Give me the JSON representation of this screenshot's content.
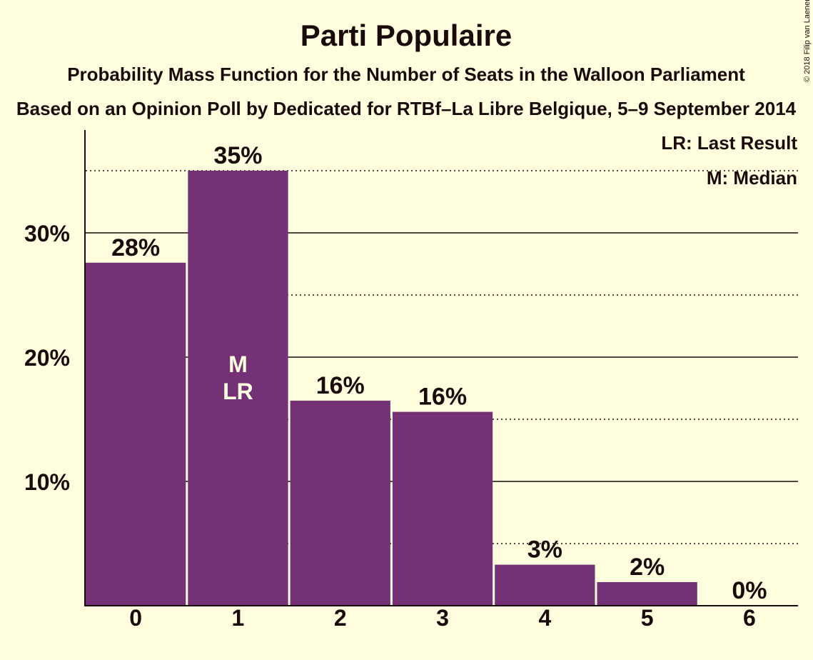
{
  "copyright": "© 2018 Filip van Laenen",
  "chart_data": {
    "type": "bar",
    "title": "Parti Populaire",
    "subtitle": "Probability Mass Function for the Number of Seats in the Walloon Parliament",
    "subtitle2": "Based on an Opinion Poll by Dedicated for RTBf–La Libre Belgique, 5–9 September 2014",
    "legend": [
      "LR: Last Result",
      "M: Median"
    ],
    "legend_position": "top-right",
    "categories": [
      "0",
      "1",
      "2",
      "3",
      "4",
      "5",
      "6"
    ],
    "values": [
      27.6,
      35.0,
      16.5,
      15.6,
      3.3,
      1.9,
      0.0
    ],
    "data_labels": [
      "28%",
      "35%",
      "16%",
      "16%",
      "3%",
      "2%",
      "0%"
    ],
    "bar_markers": {
      "1": [
        "M",
        "LR"
      ]
    },
    "y_ticks": [
      10,
      20,
      30
    ],
    "y_tick_labels": [
      "10%",
      "20%",
      "30%"
    ],
    "ylim": [
      0,
      38
    ],
    "grid_major": [
      10,
      20,
      30
    ],
    "grid_minor": [
      5,
      15,
      25,
      35
    ],
    "bar_color": "#743176",
    "background": "#ffffe0"
  }
}
